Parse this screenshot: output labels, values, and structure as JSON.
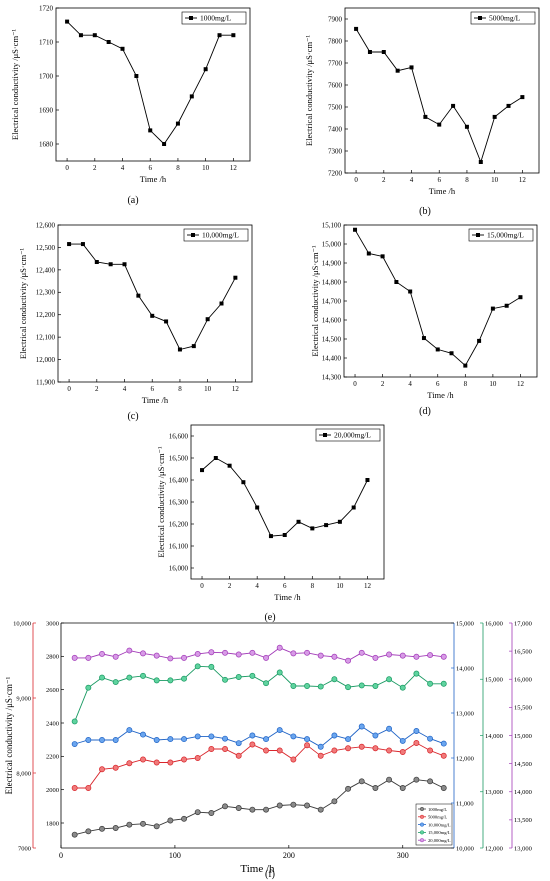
{
  "chart_data": [
    {
      "type": "line",
      "panel_label": "(a)",
      "xlabel": "Time /h",
      "ylabel": "Electrical conductivity /μS·cm⁻¹",
      "xlim": [
        -0.8,
        13.2
      ],
      "ylim": [
        1675,
        1720
      ],
      "xticks": [
        0,
        2,
        4,
        6,
        8,
        10,
        12
      ],
      "yticks": [
        1680,
        1690,
        1700,
        1710,
        1720
      ],
      "yticklabels": [
        "1680",
        "1690",
        "1700",
        "1710",
        "1720"
      ],
      "legend_position": "top-right",
      "series": [
        {
          "name": "1000mg/L",
          "x": [
            0,
            1,
            2,
            3,
            4,
            5,
            6,
            7,
            8,
            9,
            10,
            11,
            12
          ],
          "y": [
            1716,
            1712,
            1712,
            1710,
            1708,
            1700,
            1684,
            1680,
            1686,
            1694,
            1702,
            1712,
            1712
          ]
        }
      ]
    },
    {
      "type": "line",
      "panel_label": "(b)",
      "xlabel": "Time /h",
      "ylabel": "Electrical conductivity /μS·cm⁻¹",
      "xlim": [
        -0.8,
        13.2
      ],
      "ylim": [
        7200,
        7950
      ],
      "xticks": [
        0,
        2,
        4,
        6,
        8,
        10,
        12
      ],
      "yticks": [
        7200,
        7300,
        7400,
        7500,
        7600,
        7700,
        7800,
        7900
      ],
      "yticklabels": [
        "7200",
        "7300",
        "7400",
        "7500",
        "7600",
        "7700",
        "7800",
        "7900"
      ],
      "legend_position": "top-right",
      "series": [
        {
          "name": "5000mg/L",
          "x": [
            0,
            1,
            2,
            3,
            4,
            5,
            6,
            7,
            8,
            9,
            10,
            11,
            12
          ],
          "y": [
            7855,
            7750,
            7750,
            7665,
            7680,
            7455,
            7420,
            7505,
            7410,
            7250,
            7455,
            7505,
            7545
          ]
        }
      ]
    },
    {
      "type": "line",
      "panel_label": "(c)",
      "xlabel": "Time /h",
      "ylabel": "Electrical conductivity /μS·cm⁻¹",
      "xlim": [
        -0.8,
        13.2
      ],
      "ylim": [
        11900,
        12600
      ],
      "xticks": [
        0,
        2,
        4,
        6,
        8,
        10,
        12
      ],
      "yticks": [
        11900,
        12000,
        12100,
        12200,
        12300,
        12400,
        12500,
        12600
      ],
      "yticklabels": [
        "11,900",
        "12,000",
        "12,100",
        "12,200",
        "12,300",
        "12,400",
        "12,500",
        "12,600"
      ],
      "legend_position": "top-right",
      "series": [
        {
          "name": "10,000mg/L",
          "x": [
            0,
            1,
            2,
            3,
            4,
            5,
            6,
            7,
            8,
            9,
            10,
            11,
            12
          ],
          "y": [
            12515,
            12515,
            12435,
            12425,
            12425,
            12285,
            12195,
            12170,
            12045,
            12060,
            12180,
            12250,
            12365
          ]
        }
      ]
    },
    {
      "type": "line",
      "panel_label": "(d)",
      "xlabel": "Time /h",
      "ylabel": "Electrical conductivity /μS·cm⁻¹",
      "xlim": [
        -0.8,
        13.2
      ],
      "ylim": [
        14300,
        15100
      ],
      "xticks": [
        0,
        2,
        4,
        6,
        8,
        10,
        12
      ],
      "yticks": [
        14300,
        14400,
        14500,
        14600,
        14700,
        14800,
        14900,
        15000,
        15100
      ],
      "yticklabels": [
        "14,300",
        "14,400",
        "14,500",
        "14,600",
        "14,700",
        "14,800",
        "14,900",
        "15,000",
        "15,100"
      ],
      "legend_position": "top-right",
      "series": [
        {
          "name": "15,000mg/L",
          "x": [
            0,
            1,
            2,
            3,
            4,
            5,
            6,
            7,
            8,
            9,
            10,
            11,
            12
          ],
          "y": [
            15075,
            14950,
            14935,
            14800,
            14750,
            14505,
            14445,
            14425,
            14360,
            14490,
            14660,
            14675,
            14720
          ]
        }
      ]
    },
    {
      "type": "line",
      "panel_label": "(e)",
      "xlabel": "Time /h",
      "ylabel": "Electrical conductivity /μS·cm⁻¹",
      "xlim": [
        -0.8,
        13.2
      ],
      "ylim": [
        15950,
        16650
      ],
      "xticks": [
        0,
        2,
        4,
        6,
        8,
        10,
        12
      ],
      "yticks": [
        16000,
        16100,
        16200,
        16300,
        16400,
        16500,
        16600
      ],
      "yticklabels": [
        "16,000",
        "16,100",
        "16,200",
        "16,300",
        "16,400",
        "16,500",
        "16,600"
      ],
      "legend_position": "top-right",
      "series": [
        {
          "name": "20,000mg/L",
          "x": [
            0,
            1,
            2,
            3,
            4,
            5,
            6,
            7,
            8,
            9,
            10,
            11,
            12
          ],
          "y": [
            16445,
            16500,
            16465,
            16390,
            16275,
            16145,
            16150,
            16210,
            16180,
            16195,
            16210,
            16275,
            16400
          ]
        }
      ]
    },
    {
      "type": "line",
      "panel_label": "(f)",
      "xlabel": "Time /h",
      "ylabel": "Electrical conductivity /μS·cm⁻¹",
      "xlim": [
        0,
        345
      ],
      "xticks": [
        0,
        100,
        200,
        300
      ],
      "legend_position": "bottom-right",
      "axes": [
        {
          "id": "y1000",
          "side": "left",
          "offset": 1,
          "color": "#000000",
          "range": [
            1650,
            3000
          ],
          "ticks": [
            1800,
            2000,
            2200,
            2400,
            2600,
            2800,
            3000
          ],
          "ticklabels": [
            "1800",
            "2000",
            "2200",
            "2400",
            "2600",
            "2800",
            "3000"
          ]
        },
        {
          "id": "y5000",
          "side": "left",
          "offset": 0,
          "color": "#d9262c",
          "range": [
            7000,
            10000
          ],
          "ticks": [
            7000,
            8000,
            9000,
            10000
          ],
          "ticklabels": [
            "7000",
            "8,000",
            "9,000",
            "10,000"
          ]
        },
        {
          "id": "y10000",
          "side": "right",
          "offset": 0,
          "color": "#1f63c6",
          "range": [
            10000,
            15000
          ],
          "ticks": [
            10000,
            11000,
            12000,
            13000,
            14000,
            15000
          ],
          "ticklabels": [
            "10,000",
            "11,000",
            "12,000",
            "13,000",
            "14,000",
            "15,000"
          ]
        },
        {
          "id": "y15000",
          "side": "right",
          "offset": 1,
          "color": "#1a9a63",
          "range": [
            12000,
            16000
          ],
          "ticks": [
            12000,
            13000,
            14000,
            15000,
            16000
          ],
          "ticklabels": [
            "12,000",
            "13,000",
            "14,000",
            "15,000",
            "16,000"
          ]
        },
        {
          "id": "y20000",
          "side": "right",
          "offset": 2,
          "color": "#a23ab8",
          "range": [
            13000,
            17000
          ],
          "ticks": [
            13000,
            13500,
            14000,
            14500,
            15000,
            15500,
            16000,
            16500,
            17000
          ],
          "ticklabels": [
            "13,000",
            "13,500",
            "14,000",
            "14,500",
            "15,000",
            "15,500",
            "16,000",
            "16,500",
            "17,000"
          ]
        }
      ],
      "series": [
        {
          "name": "1000mg/L",
          "axis": "y1000",
          "color": "#3a3a3a",
          "fill": "#8a8a8a",
          "x": [
            12,
            24,
            36,
            48,
            60,
            72,
            84,
            96,
            108,
            120,
            132,
            144,
            156,
            168,
            180,
            192,
            204,
            216,
            228,
            240,
            252,
            264,
            276,
            288,
            300,
            312,
            324,
            336
          ],
          "y": [
            1730,
            1750,
            1765,
            1770,
            1790,
            1795,
            1780,
            1815,
            1825,
            1865,
            1860,
            1900,
            1890,
            1880,
            1880,
            1905,
            1910,
            1905,
            1880,
            1930,
            2005,
            2050,
            2010,
            2060,
            2010,
            2060,
            2050,
            2010
          ]
        },
        {
          "name": "5000mg/L",
          "axis": "y5000",
          "color": "#d9262c",
          "fill": "#f07a7a",
          "x": [
            12,
            24,
            36,
            48,
            60,
            72,
            84,
            96,
            108,
            120,
            132,
            144,
            156,
            168,
            180,
            192,
            204,
            216,
            228,
            240,
            252,
            264,
            276,
            288,
            300,
            312,
            324,
            336
          ],
          "y": [
            7800,
            7800,
            8050,
            8070,
            8130,
            8180,
            8140,
            8140,
            8180,
            8200,
            8320,
            8320,
            8230,
            8380,
            8300,
            8300,
            8180,
            8370,
            8230,
            8300,
            8330,
            8350,
            8330,
            8300,
            8280,
            8400,
            8300,
            8230
          ]
        },
        {
          "name": "10,000mg/L",
          "axis": "y10000",
          "color": "#1f63c6",
          "fill": "#6aa5ee",
          "x": [
            12,
            24,
            36,
            48,
            60,
            72,
            84,
            96,
            108,
            120,
            132,
            144,
            156,
            168,
            180,
            192,
            204,
            216,
            228,
            240,
            252,
            264,
            276,
            288,
            300,
            312,
            324,
            336
          ],
          "y": [
            12310,
            12400,
            12400,
            12400,
            12620,
            12520,
            12400,
            12420,
            12420,
            12480,
            12480,
            12430,
            12330,
            12500,
            12420,
            12620,
            12480,
            12420,
            12250,
            12500,
            12420,
            12700,
            12500,
            12650,
            12380,
            12600,
            12430,
            12320
          ]
        },
        {
          "name": "15,000mg/L",
          "axis": "y15000",
          "color": "#1a9a63",
          "fill": "#5fd39f",
          "x": [
            12,
            24,
            36,
            48,
            60,
            72,
            84,
            96,
            108,
            120,
            132,
            144,
            156,
            168,
            180,
            192,
            204,
            216,
            228,
            240,
            252,
            264,
            276,
            288,
            300,
            312,
            324,
            336
          ],
          "y": [
            14250,
            14850,
            15030,
            14950,
            15030,
            15060,
            14980,
            14980,
            15010,
            15230,
            15220,
            14990,
            15040,
            15060,
            14930,
            15120,
            14880,
            14880,
            14870,
            15000,
            14860,
            14890,
            14880,
            15000,
            14850,
            15100,
            14920,
            14920
          ]
        },
        {
          "name": "20,000mg/L",
          "axis": "y20000",
          "color": "#a23ab8",
          "fill": "#d79be6",
          "x": [
            12,
            24,
            36,
            48,
            60,
            72,
            84,
            96,
            108,
            120,
            132,
            144,
            156,
            168,
            180,
            192,
            204,
            216,
            228,
            240,
            252,
            264,
            276,
            288,
            300,
            312,
            324,
            336
          ],
          "y": [
            16380,
            16380,
            16450,
            16400,
            16510,
            16460,
            16420,
            16370,
            16380,
            16450,
            16480,
            16470,
            16440,
            16470,
            16380,
            16560,
            16460,
            16470,
            16420,
            16400,
            16330,
            16470,
            16380,
            16440,
            16420,
            16400,
            16430,
            16400
          ]
        }
      ]
    }
  ]
}
